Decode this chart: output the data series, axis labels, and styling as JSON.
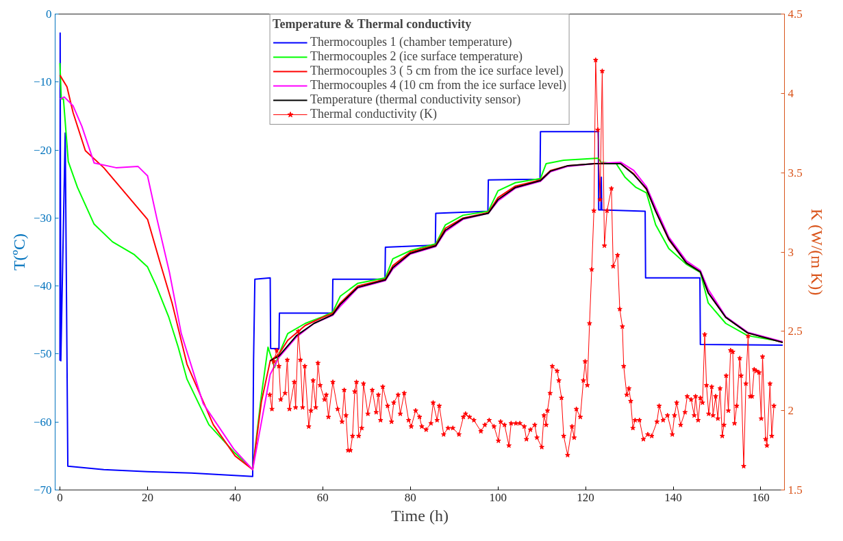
{
  "chart_data": {
    "type": "line",
    "xlabel": "Time (h)",
    "ylabel": "T(ºC)",
    "y2label": "K (W/(m K))",
    "legend_title": "Temperature & Thermal conductivity",
    "xlim": [
      -1.1,
      165.4
    ],
    "xticks": [
      0,
      20,
      40,
      60,
      80,
      100,
      120,
      140,
      160
    ],
    "ylim": [
      -70,
      0
    ],
    "yticks": [
      -70,
      -60,
      -50,
      -40,
      -30,
      -20,
      -10,
      0
    ],
    "y2lim": [
      1.5,
      4.5
    ],
    "y2ticks": [
      1.5,
      2,
      2.5,
      3,
      3.5,
      4,
      4.5
    ],
    "grid": false,
    "legend": "top",
    "line_style": "solid",
    "series": [
      {
        "name": "Thermocouples 1 (chamber temperature)",
        "color": "#0000ff",
        "marker": "none",
        "x": [
          0,
          0.05,
          0.2,
          1.2,
          1.8,
          10,
          20,
          30,
          44,
          44.2,
          44.5,
          48,
          48.1,
          50,
          50.1,
          62.2,
          62.3,
          74.2,
          74.3,
          85.7,
          85.8,
          97.7,
          97.8,
          109.6,
          109.7,
          122.9,
          123.0,
          123.5,
          123.6,
          123.7,
          133.6,
          133.7,
          146.1,
          146.2,
          165
        ],
        "values": [
          -51,
          -2.8,
          -51,
          -17.5,
          -66.5,
          -67,
          -67.3,
          -67.5,
          -68,
          -51,
          -39,
          -38.8,
          -49.2,
          -49.2,
          -44,
          -44,
          -39,
          -39,
          -34.3,
          -34,
          -29.3,
          -29,
          -24.4,
          -24.3,
          -17.3,
          -17.3,
          -28.8,
          -28.8,
          -24,
          -28.8,
          -29,
          -38.8,
          -38.8,
          -48.6,
          -48.7
        ]
      },
      {
        "name": "Thermocouples 2 (ice surface temperature)",
        "color": "#00ff00",
        "marker": "none",
        "x": [
          0,
          0.3,
          0.8,
          1.9,
          4,
          7.8,
          12,
          17,
          20,
          22,
          24.8,
          27,
          29,
          34,
          39.7,
          44,
          46,
          47.5,
          49,
          50,
          52,
          56,
          60,
          62.3,
          64,
          68,
          74.3,
          76,
          80,
          85.8,
          88,
          92,
          97.8,
          100,
          104,
          109.7,
          111,
          115,
          122.9,
          123.5,
          127,
          129,
          131.5,
          133.9,
          136,
          139,
          143,
          146.2,
          148,
          152,
          157,
          165
        ],
        "values": [
          -7.2,
          -12.5,
          -12.5,
          -21.7,
          -25.5,
          -30.9,
          -33.5,
          -35.4,
          -37.2,
          -40,
          -44.5,
          -49,
          -53.7,
          -60.4,
          -64.4,
          -67,
          -56,
          -49,
          -52,
          -50,
          -47,
          -45.5,
          -44.5,
          -43.8,
          -41.5,
          -39.6,
          -38.8,
          -36,
          -34.8,
          -33.8,
          -31,
          -29.6,
          -29,
          -26,
          -24.8,
          -24.2,
          -22,
          -21.5,
          -21.2,
          -21.8,
          -22,
          -24,
          -25.5,
          -26.3,
          -31,
          -34.5,
          -36.8,
          -38,
          -42.5,
          -45.5,
          -47.3,
          -48.2
        ]
      },
      {
        "name": "Thermocouples 3 ( 5 cm from the ice surface level)",
        "color": "#ff0000",
        "marker": "none",
        "x": [
          0,
          1.6,
          3,
          5.8,
          10,
          15,
          20,
          22.7,
          25.6,
          29,
          35,
          40,
          44,
          46,
          48,
          50,
          52,
          56,
          60,
          62.3,
          64,
          68,
          74.3,
          76,
          80,
          85.8,
          88,
          92,
          97.8,
          100,
          104,
          109.7,
          112,
          116,
          122,
          128,
          131,
          133.9,
          136,
          139,
          143,
          146.2,
          148,
          152,
          157,
          165
        ],
        "values": [
          -9,
          -10.7,
          -14.5,
          -20.1,
          -22.6,
          -26.4,
          -30.2,
          -36.2,
          -42.5,
          -51.5,
          -60.4,
          -65,
          -67,
          -57,
          -51,
          -50,
          -48,
          -45.8,
          -44.6,
          -44,
          -42.5,
          -40,
          -39,
          -37,
          -35,
          -34,
          -31.5,
          -30,
          -29.2,
          -27,
          -25.3,
          -24.4,
          -23,
          -22.3,
          -22,
          -22,
          -23.5,
          -25.8,
          -29,
          -33.2,
          -36.6,
          -37.9,
          -41,
          -44.6,
          -46.9,
          -48.3
        ]
      },
      {
        "name": "Thermocouples 4 (10 cm from the ice surface level)",
        "color": "#ff00ff",
        "marker": "none",
        "x": [
          0,
          1,
          3,
          5,
          7.8,
          12.8,
          17.8,
          20,
          22.1,
          25,
          27.7,
          32.7,
          39.7,
          44,
          46,
          48,
          50,
          54,
          58,
          62.3,
          64,
          68,
          74.3,
          76,
          80,
          85.8,
          88,
          92,
          97.8,
          100,
          104,
          109.7,
          112,
          116,
          122,
          128,
          131,
          133.9,
          136,
          139,
          143,
          146.2,
          148,
          152,
          157,
          165
        ],
        "values": [
          -12.5,
          -12.2,
          -13.5,
          -16.5,
          -21.9,
          -22.6,
          -22.4,
          -23.8,
          -30,
          -38,
          -47,
          -57.3,
          -64,
          -67,
          -60,
          -53,
          -50.5,
          -47.5,
          -45.5,
          -44.3,
          -43,
          -40.3,
          -39.2,
          -37.5,
          -35.3,
          -34.2,
          -32,
          -30.2,
          -29.3,
          -27.5,
          -25.6,
          -24.6,
          -23.2,
          -22.4,
          -22,
          -21.8,
          -23,
          -25.4,
          -28.5,
          -32.8,
          -36.3,
          -37.7,
          -40.5,
          -44.5,
          -46.8,
          -48.2
        ]
      },
      {
        "name": "Temperature (thermal conductivity sensor)",
        "color": "#000000",
        "marker": "none",
        "x": [
          48,
          50,
          54,
          58,
          62.3,
          64,
          68,
          74.3,
          76,
          80,
          85.8,
          88,
          92,
          97.8,
          100,
          104,
          109.7,
          112,
          116,
          122,
          128,
          131,
          133.9,
          136,
          139,
          143,
          146.2,
          148,
          152,
          157,
          165
        ],
        "values": [
          -51,
          -50.3,
          -47.3,
          -45.5,
          -44.2,
          -42.7,
          -40.2,
          -39.1,
          -37.3,
          -35.2,
          -34.1,
          -31.8,
          -30.1,
          -29.3,
          -27.3,
          -25.5,
          -24.5,
          -23.1,
          -22.3,
          -22,
          -22,
          -23.6,
          -25.7,
          -29,
          -33.1,
          -36.6,
          -37.9,
          -41,
          -44.6,
          -46.9,
          -48.3
        ]
      },
      {
        "name": "Thermal conductivity (K)",
        "color": "#ff0000",
        "marker": "star",
        "axis": "y2",
        "x": [
          47.9,
          48.4,
          48.8,
          49.5,
          50.0,
          50.4,
          51.4,
          51.9,
          52.4,
          53.5,
          53.8,
          54.4,
          54.9,
          55.4,
          55.9,
          56.8,
          57.3,
          57.8,
          58.4,
          58.9,
          59.4,
          60.4,
          60.8,
          61.3,
          62.3,
          63.4,
          64.4,
          64.9,
          65.3,
          65.8,
          66.3,
          66.8,
          67.3,
          67.7,
          68.2,
          68.9,
          69.3,
          70.3,
          71.3,
          72.2,
          72.7,
          73.2,
          73.7,
          74.8,
          75.7,
          76.2,
          77.2,
          77.7,
          78.6,
          79.6,
          80.2,
          81.2,
          82.1,
          82.6,
          83.6,
          84.7,
          85.2,
          86.1,
          86.6,
          87.6,
          88.6,
          89.7,
          91.1,
          92.1,
          92.6,
          93.5,
          94.5,
          96.1,
          97.0,
          98.0,
          99.1,
          100.1,
          100.6,
          101.5,
          102.5,
          103.0,
          104.1,
          105.0,
          106.0,
          106.5,
          107.4,
          108.4,
          108.9,
          110.0,
          110.5,
          111.0,
          111.3,
          111.9,
          112.4,
          113.5,
          113.9,
          114.5,
          115.0,
          115.9,
          116.9,
          117.4,
          117.9,
          118.8,
          119.5,
          119.9,
          120.4,
          120.9,
          121.4,
          121.9,
          122.3,
          122.8,
          123.3,
          123.8,
          124.3,
          124.9,
          125.9,
          126.3,
          127.3,
          127.8,
          128.4,
          128.7,
          129.4,
          129.9,
          130.3,
          130.8,
          131.3,
          132.3,
          133.2,
          134.2,
          135.1,
          136.3,
          136.8,
          137.7,
          138.7,
          139.8,
          140.3,
          140.8,
          141.7,
          142.7,
          143.2,
          144.1,
          144.8,
          145.1,
          145.7,
          146.2,
          146.7,
          147.2,
          147.6,
          148.1,
          148.8,
          149.1,
          149.7,
          150.2,
          150.7,
          151.2,
          151.6,
          152.1,
          152.6,
          153.1,
          153.6,
          154.0,
          154.5,
          155.2,
          155.5,
          156.1,
          156.6,
          157.1,
          157.6,
          158.0,
          158.5,
          159.0,
          159.6,
          160.1,
          160.4,
          161.1,
          161.4,
          162.1,
          162.5,
          163.0
        ],
        "values": [
          2.1,
          2.01,
          2.31,
          2.38,
          2.28,
          2.07,
          2.11,
          2.32,
          2.01,
          2.18,
          2.02,
          2.5,
          2.32,
          2.02,
          2.28,
          1.9,
          2.0,
          2.19,
          2.02,
          2.3,
          2.16,
          2.07,
          2.1,
          1.96,
          2.18,
          2.01,
          1.93,
          2.13,
          1.97,
          1.75,
          1.75,
          1.84,
          2.12,
          2.18,
          1.84,
          1.89,
          2.17,
          1.98,
          2.13,
          1.99,
          2.1,
          1.94,
          2.15,
          2.03,
          1.93,
          2.05,
          2.1,
          1.98,
          2.11,
          1.94,
          1.9,
          2.0,
          1.96,
          1.9,
          1.88,
          1.92,
          2.05,
          1.94,
          2.03,
          1.85,
          1.89,
          1.89,
          1.85,
          1.96,
          1.98,
          1.96,
          1.94,
          1.87,
          1.91,
          1.94,
          1.9,
          1.81,
          1.93,
          1.91,
          1.78,
          1.92,
          1.92,
          1.92,
          1.9,
          1.82,
          1.88,
          1.91,
          1.83,
          1.77,
          1.97,
          1.91,
          2.0,
          2.11,
          2.28,
          2.25,
          2.19,
          2.08,
          1.84,
          1.72,
          1.9,
          1.83,
          2.01,
          1.96,
          2.19,
          2.31,
          2.16,
          2.55,
          2.89,
          3.26,
          4.21,
          3.77,
          3.33,
          4.14,
          3.04,
          3.26,
          3.4,
          2.91,
          2.98,
          2.64,
          2.53,
          2.28,
          2.1,
          2.14,
          2.06,
          1.89,
          1.94,
          1.94,
          1.82,
          1.85,
          1.84,
          1.93,
          2.03,
          1.94,
          1.97,
          1.85,
          1.97,
          2.05,
          1.91,
          1.99,
          2.09,
          2.07,
          1.97,
          2.09,
          1.94,
          2.08,
          2.05,
          2.48,
          2.16,
          1.98,
          2.15,
          1.97,
          2.09,
          1.95,
          2.14,
          1.84,
          1.91,
          2.22,
          2.0,
          2.38,
          2.37,
          1.92,
          2.03,
          2.33,
          2.22,
          1.65,
          2.17,
          2.47,
          2.09,
          2.09,
          2.26,
          2.25,
          2.24,
          1.95,
          2.34,
          1.82,
          1.78,
          2.17,
          1.84,
          2.03
        ]
      }
    ]
  }
}
